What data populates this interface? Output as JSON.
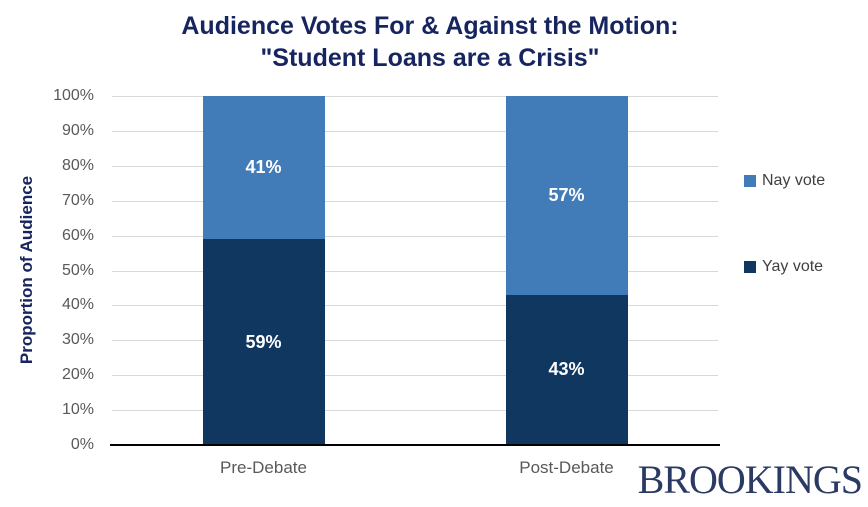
{
  "title": {
    "line1": "Audience Votes For & Against the Motion:",
    "line2": "\"Student Loans are a Crisis\""
  },
  "logo_text": "BROOKINGS",
  "colors": {
    "title_navy": "#16245F",
    "nay_blue": "#417CB8",
    "yay_navy": "#10375F",
    "tick_label_gray": "#595959",
    "legend_text_gray": "#404040",
    "gridline_gray": "#D9D9D9",
    "axis_line_black": "#000000",
    "bar_label_white": "#FFFFFF",
    "logo_navy": "#2B3A64"
  },
  "chart_data": {
    "type": "bar",
    "stacked": true,
    "title": "Audience Votes For & Against the Motion: \"Student Loans are a Crisis\"",
    "ylabel": "Proportion of Audience",
    "xlabel": "",
    "categories": [
      "Pre-Debate",
      "Post-Debate"
    ],
    "series": [
      {
        "name": "Nay vote",
        "color": "#417CB8",
        "values": [
          41,
          57
        ]
      },
      {
        "name": "Yay vote",
        "color": "#10375F",
        "values": [
          59,
          43
        ]
      }
    ],
    "stack_order_bottom_to_top": [
      "Yay vote",
      "Nay vote"
    ],
    "value_label_format": "{v}%",
    "ylim": [
      0,
      100
    ],
    "yticks": [
      0,
      10,
      20,
      30,
      40,
      50,
      60,
      70,
      80,
      90,
      100
    ],
    "ytick_format": "{v}%",
    "grid": true,
    "legend_position": "right"
  }
}
